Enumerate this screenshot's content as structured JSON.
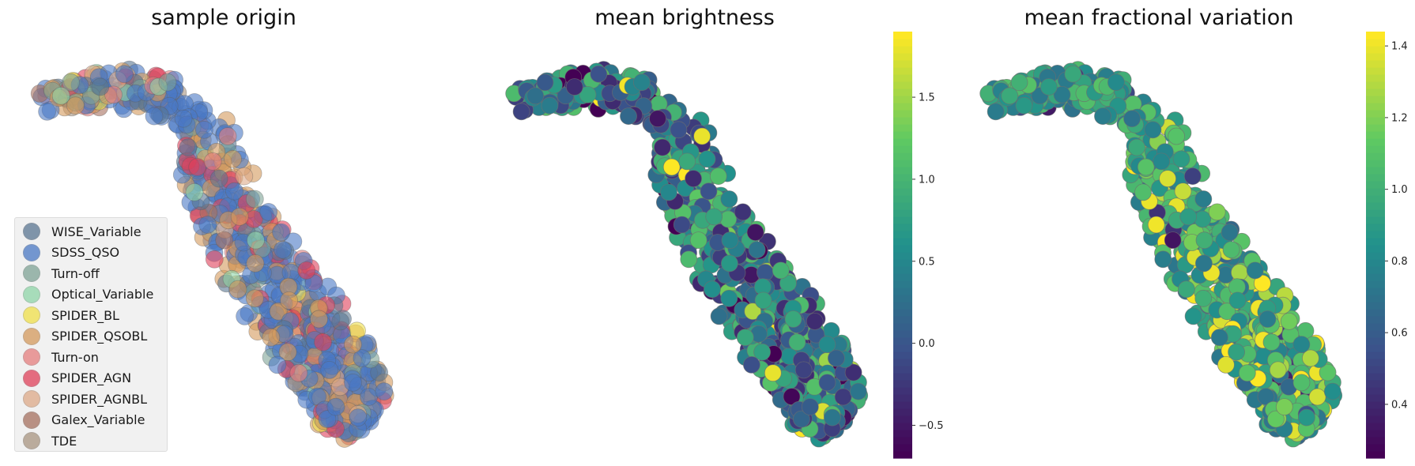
{
  "colors": {
    "WISE_Variable": "#5a7691",
    "SDSS_QSO": "#4a78c4",
    "Turn-off": "#7fa396",
    "Optical_Variable": "#8fd6a8",
    "SPIDER_BL": "#f0e04a",
    "SPIDER_QSOBL": "#d49a5c",
    "Turn-on": "#e67e7e",
    "SPIDER_AGN": "#e0405a",
    "SPIDER_AGNBL": "#ddaa88",
    "Galex_Variable": "#a6705f",
    "TDE": "#a89480"
  },
  "chart_data": [
    {
      "type": "scatter",
      "title": "sample origin",
      "xlabel": "",
      "ylabel": "",
      "grid": false,
      "legend_placement": "lower-left",
      "legend": [
        "WISE_Variable",
        "SDSS_QSO",
        "Turn-off",
        "Optical_Variable",
        "SPIDER_BL",
        "SPIDER_QSOBL",
        "Turn-on",
        "SPIDER_AGN",
        "SPIDER_AGNBL",
        "Galex_Variable",
        "TDE"
      ],
      "series_note_values": "points colored by categorical sample origin"
    },
    {
      "type": "scatter",
      "title": "mean brightness",
      "colormap": "viridis",
      "colorbar": {
        "range": [
          -0.7,
          1.9
        ],
        "ticks": [
          "−0.5",
          "0.0",
          "0.5",
          "1.0",
          "1.5"
        ],
        "tick_values": [
          -0.5,
          0.0,
          0.5,
          1.0,
          1.5
        ]
      }
    },
    {
      "type": "scatter",
      "title": "mean fractional variation",
      "colormap": "viridis",
      "colorbar": {
        "range": [
          0.25,
          1.44
        ],
        "ticks": [
          "0.4",
          "0.6",
          "0.8",
          "1.0",
          "1.2",
          "1.4"
        ],
        "tick_values": [
          0.4,
          0.6,
          0.8,
          1.0,
          1.2,
          1.4
        ]
      }
    }
  ]
}
